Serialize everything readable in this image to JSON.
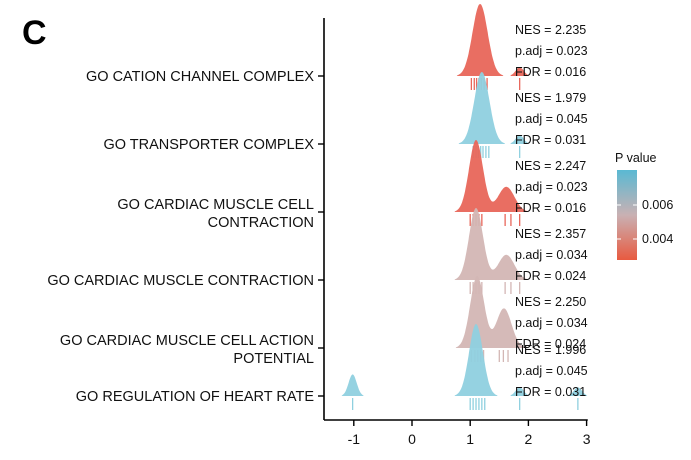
{
  "panel_label": "C",
  "colors": {
    "low_p": "#e8665a",
    "mid_p": "#d3b6b4",
    "high_p": "#8fd0df"
  },
  "chart_data": {
    "type": "ridgeline",
    "x_ticks": [
      "-1",
      "0",
      "1",
      "2",
      "3"
    ],
    "xlim": [
      -1.3,
      3.1
    ],
    "legend": {
      "title": "P value",
      "ticks": [
        "0.006",
        "0.004"
      ],
      "position": "right"
    },
    "gene_sets": [
      {
        "label": [
          "GO CATION CHANNEL COMPLEX"
        ],
        "stats": [
          "NES = 2.235",
          "p.adj = 0.023",
          "FDR = 0.016"
        ],
        "color": "#e8665a",
        "peaks": [
          [
            1.17,
            1.0,
            0.13
          ],
          [
            1.85,
            0.12,
            0.07
          ]
        ],
        "rugs": [
          1.02,
          1.07,
          1.11,
          1.15,
          1.19,
          1.24,
          1.29,
          1.85
        ]
      },
      {
        "label": [
          "GO TRANSPORTER COMPLEX"
        ],
        "stats": [
          "NES = 1.979",
          "p.adj = 0.045",
          "FDR = 0.031"
        ],
        "color": "#8fd0df",
        "peaks": [
          [
            1.2,
            1.0,
            0.13
          ],
          [
            1.85,
            0.12,
            0.07
          ]
        ],
        "rugs": [
          1.05,
          1.1,
          1.14,
          1.18,
          1.22,
          1.27,
          1.32,
          1.85
        ]
      },
      {
        "label": [
          "GO CARDIAC MUSCLE CELL",
          "CONTRACTION"
        ],
        "stats": [
          "NES = 2.247",
          "p.adj = 0.023",
          "FDR = 0.016"
        ],
        "color": "#e8665a",
        "peaks": [
          [
            1.1,
            1.0,
            0.12
          ],
          [
            1.62,
            0.35,
            0.14
          ]
        ],
        "rugs": [
          1.0,
          1.05,
          1.1,
          1.15,
          1.2,
          1.6,
          1.7,
          1.85
        ]
      },
      {
        "label": [
          "GO CARDIAC MUSCLE CONTRACTION"
        ],
        "stats": [
          "NES = 2.357",
          "p.adj = 0.034",
          "FDR = 0.024"
        ],
        "color": "#d3b6b4",
        "peaks": [
          [
            1.1,
            1.0,
            0.12
          ],
          [
            1.62,
            0.35,
            0.14
          ]
        ],
        "rugs": [
          1.0,
          1.05,
          1.1,
          1.15,
          1.2,
          1.6,
          1.7,
          1.85
        ]
      },
      {
        "label": [
          "GO CARDIAC MUSCLE CELL ACTION",
          "POTENTIAL"
        ],
        "stats": [
          "NES = 2.250",
          "p.adj = 0.034",
          "FDR = 0.024"
        ],
        "color": "#d3b6b4",
        "peaks": [
          [
            1.12,
            1.0,
            0.12
          ],
          [
            1.58,
            0.55,
            0.13
          ]
        ],
        "rugs": [
          1.02,
          1.08,
          1.13,
          1.18,
          1.23,
          1.5,
          1.57,
          1.65
        ]
      },
      {
        "label": [
          "GO REGULATION OF HEART RATE"
        ],
        "stats": [
          "NES = 1.996",
          "p.adj = 0.045",
          "FDR = 0.031"
        ],
        "color": "#8fd0df",
        "peaks": [
          [
            -1.02,
            0.3,
            0.07
          ],
          [
            1.1,
            1.0,
            0.12
          ],
          [
            1.85,
            0.12,
            0.07
          ],
          [
            2.85,
            0.12,
            0.07
          ]
        ],
        "rugs": [
          -1.02,
          1.0,
          1.05,
          1.1,
          1.15,
          1.2,
          1.25,
          1.85,
          2.85
        ]
      }
    ]
  }
}
